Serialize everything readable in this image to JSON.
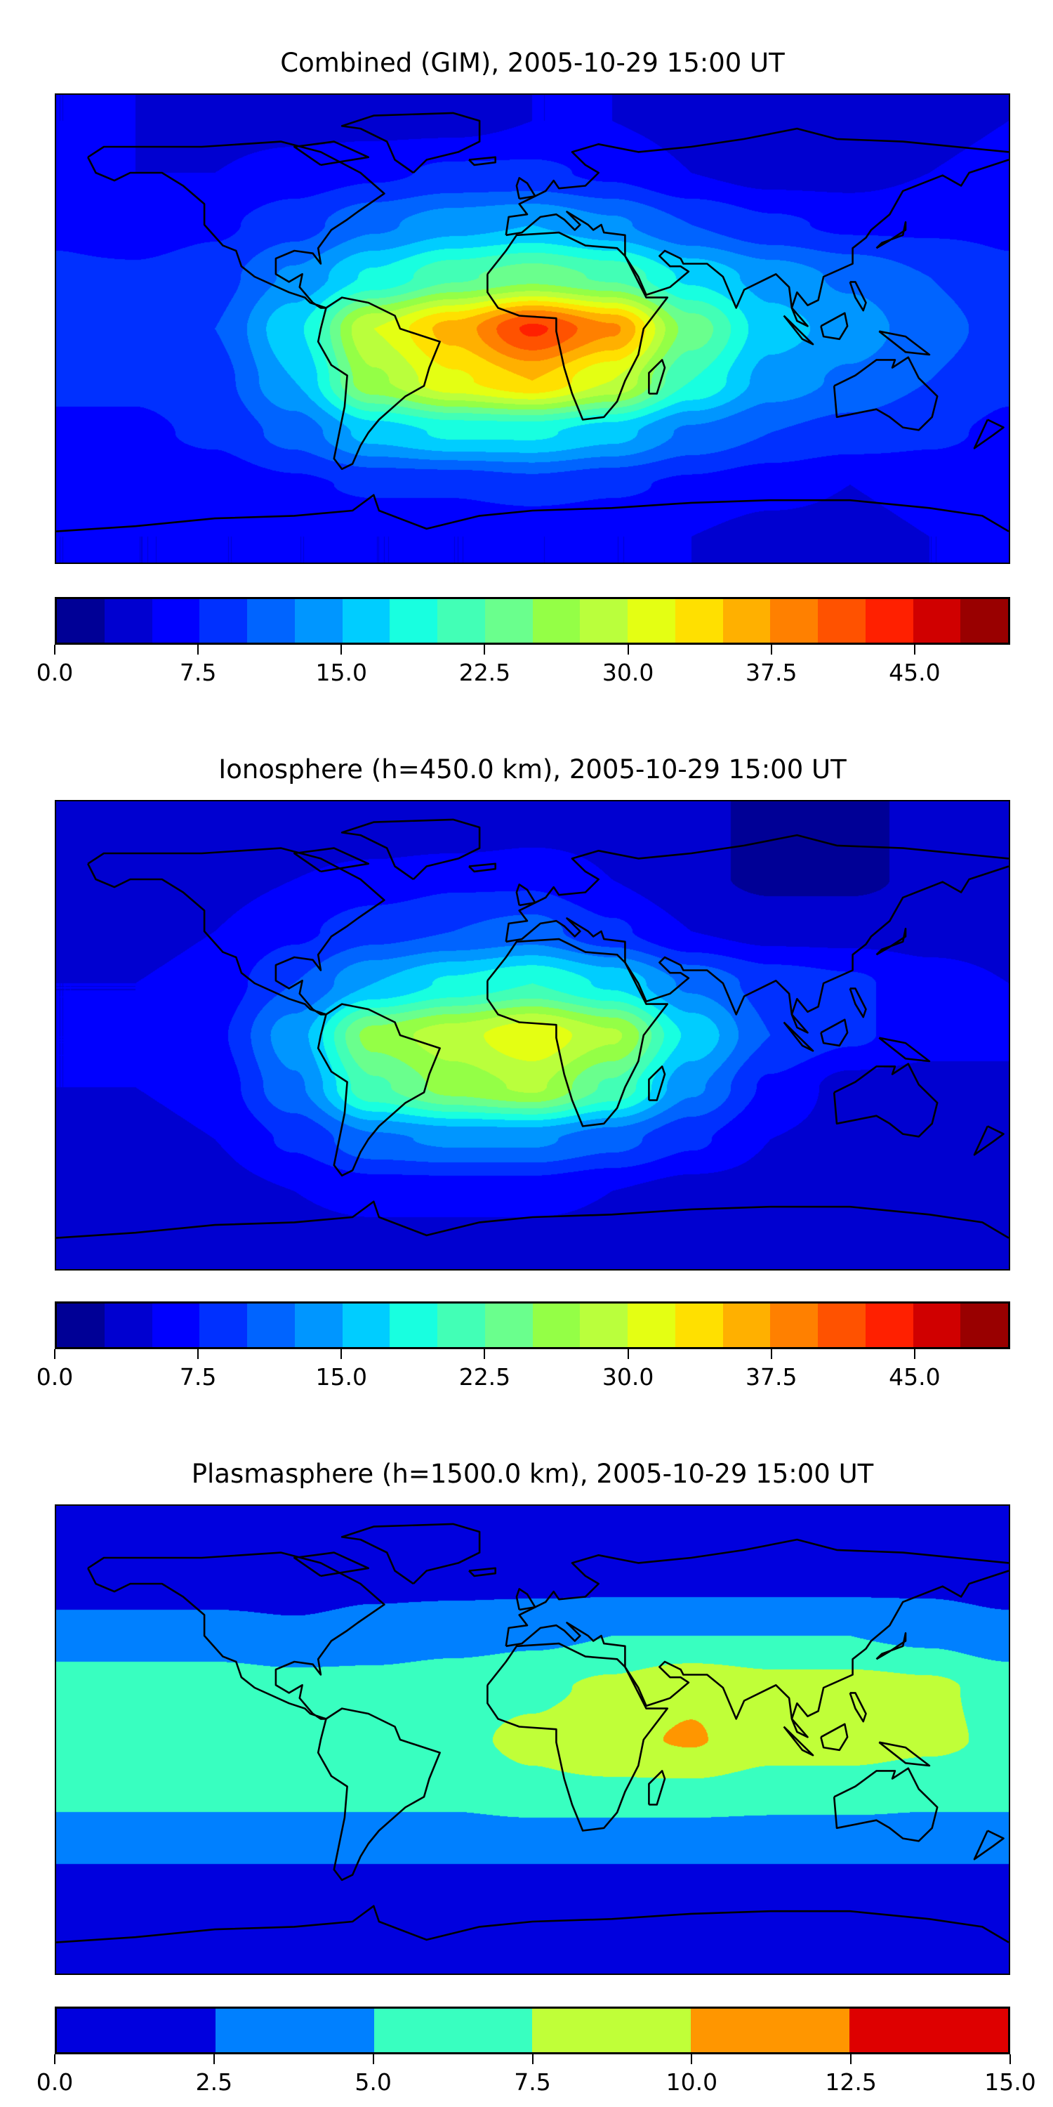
{
  "chart_data": [
    {
      "type": "heatmap",
      "title": "Combined (GIM), 2005-10-29 15:00 UT",
      "projection": "plate-carree",
      "lons": [
        -180,
        -150,
        -120,
        -90,
        -60,
        -30,
        0,
        30,
        60,
        90,
        120,
        150,
        180
      ],
      "lats": [
        80,
        60,
        40,
        20,
        0,
        -20,
        -40,
        -60,
        -80
      ],
      "values": [
        [
          5,
          5,
          4,
          4,
          4,
          4,
          5,
          5,
          4,
          3,
          3,
          4,
          5
        ],
        [
          6,
          5,
          5,
          6,
          7,
          8,
          8,
          7,
          5,
          4,
          4,
          5,
          6
        ],
        [
          7,
          6,
          7,
          9,
          12,
          14,
          15,
          13,
          10,
          8,
          7,
          7,
          7
        ],
        [
          8,
          8,
          9,
          13,
          18,
          22,
          24,
          22,
          17,
          14,
          12,
          10,
          8
        ],
        [
          9,
          9,
          10,
          17,
          30,
          36,
          43,
          38,
          24,
          16,
          14,
          11,
          9
        ],
        [
          8,
          8,
          9,
          15,
          27,
          32,
          35,
          30,
          20,
          14,
          12,
          10,
          8
        ],
        [
          7,
          7,
          8,
          11,
          16,
          18,
          18,
          16,
          12,
          10,
          9,
          8,
          7
        ],
        [
          6,
          6,
          6,
          7,
          8,
          8,
          9,
          8,
          7,
          6,
          5,
          6,
          6
        ],
        [
          5,
          5,
          5,
          5,
          5,
          5,
          5,
          5,
          5,
          4,
          4,
          5,
          5
        ]
      ],
      "colorbar": {
        "range": [
          0,
          50
        ],
        "step": 2.5,
        "ticks": [
          "0.0",
          "7.5",
          "15.0",
          "22.5",
          "30.0",
          "37.5",
          "45.0"
        ],
        "tick_values": [
          0,
          7.5,
          15,
          22.5,
          30,
          37.5,
          45
        ],
        "colors": [
          "#000096",
          "#0000d0",
          "#0000ff",
          "#0030ff",
          "#0064ff",
          "#0096ff",
          "#00cdff",
          "#18ffe0",
          "#42ffb6",
          "#6aff8d",
          "#94ff46",
          "#baff3c",
          "#e4ff13",
          "#ffe000",
          "#ffb000",
          "#ff8000",
          "#ff5200",
          "#ff2000",
          "#d00000",
          "#990000"
        ]
      }
    },
    {
      "type": "heatmap",
      "title": "Ionosphere  (h=450.0 km), 2005-10-29 15:00 UT",
      "projection": "plate-carree",
      "lons": [
        -180,
        -150,
        -120,
        -90,
        -60,
        -30,
        0,
        30,
        60,
        90,
        120,
        150,
        180
      ],
      "lats": [
        80,
        60,
        40,
        20,
        0,
        -20,
        -40,
        -60,
        -80
      ],
      "values": [
        [
          4,
          4,
          3,
          3,
          3,
          3,
          4,
          4,
          3,
          2,
          2,
          3,
          4
        ],
        [
          4,
          4,
          4,
          5,
          6,
          7,
          7,
          5,
          3,
          2,
          2,
          3,
          4
        ],
        [
          4,
          4,
          5,
          7,
          9,
          10,
          11,
          8,
          5,
          4,
          4,
          4,
          4
        ],
        [
          5,
          5,
          6,
          10,
          15,
          18,
          20,
          17,
          12,
          9,
          8,
          6,
          5
        ],
        [
          5,
          5,
          7,
          14,
          26,
          29,
          32,
          28,
          17,
          10,
          8,
          6,
          5
        ],
        [
          5,
          5,
          6,
          12,
          22,
          26,
          28,
          22,
          13,
          7,
          4,
          4,
          5
        ],
        [
          4,
          4,
          5,
          8,
          12,
          13,
          13,
          11,
          8,
          5,
          4,
          4,
          4
        ],
        [
          4,
          4,
          4,
          5,
          6,
          6,
          6,
          5,
          4,
          4,
          3,
          3,
          4
        ],
        [
          4,
          4,
          4,
          4,
          4,
          4,
          4,
          4,
          4,
          3,
          3,
          3,
          4
        ]
      ],
      "colorbar": {
        "range": [
          0,
          50
        ],
        "step": 2.5,
        "ticks": [
          "0.0",
          "7.5",
          "15.0",
          "22.5",
          "30.0",
          "37.5",
          "45.0"
        ],
        "tick_values": [
          0,
          7.5,
          15,
          22.5,
          30,
          37.5,
          45
        ],
        "colors": [
          "#000096",
          "#0000d0",
          "#0000ff",
          "#0030ff",
          "#0064ff",
          "#0096ff",
          "#00cdff",
          "#18ffe0",
          "#42ffb6",
          "#6aff8d",
          "#94ff46",
          "#baff3c",
          "#e4ff13",
          "#ffe000",
          "#ffb000",
          "#ff8000",
          "#ff5200",
          "#ff2000",
          "#d00000",
          "#990000"
        ]
      }
    },
    {
      "type": "heatmap",
      "title": "Plasmasphere (h=1500.0 km), 2005-10-29 15:00 UT",
      "projection": "plate-carree",
      "lons": [
        -180,
        -150,
        -120,
        -90,
        -60,
        -30,
        0,
        30,
        60,
        90,
        120,
        150,
        180
      ],
      "lats": [
        80,
        60,
        40,
        20,
        0,
        -20,
        -40,
        -60,
        -80
      ],
      "values": [
        [
          1,
          1,
          1,
          1,
          1,
          1,
          1,
          1,
          1,
          1,
          1,
          1,
          1
        ],
        [
          1.5,
          1.5,
          1.5,
          1.5,
          2,
          2,
          2,
          2,
          2,
          2,
          2,
          2,
          1.5
        ],
        [
          3.5,
          3.5,
          3.5,
          3,
          3.5,
          4,
          4.5,
          5,
          5,
          5,
          5,
          4.5,
          3.5
        ],
        [
          6.5,
          6.5,
          6.5,
          6,
          6,
          6.5,
          7,
          8,
          9.6,
          8.5,
          8.5,
          8,
          6.5
        ],
        [
          7,
          7,
          7,
          7,
          7,
          7,
          8,
          9.5,
          10.2,
          8.5,
          8.5,
          8,
          7
        ],
        [
          6,
          6,
          6,
          6,
          6,
          6,
          7,
          7,
          7,
          6.5,
          6.5,
          6,
          6
        ],
        [
          3,
          3,
          3,
          3,
          3,
          3,
          3,
          3,
          3,
          3,
          3,
          3,
          3
        ],
        [
          1.5,
          1.5,
          1.5,
          1.5,
          1.5,
          1.5,
          1.5,
          1.5,
          1.5,
          1.5,
          1.5,
          1.5,
          1.5
        ],
        [
          1,
          1,
          1,
          1,
          1,
          1,
          1,
          1,
          1,
          1,
          1,
          1,
          1
        ]
      ],
      "colorbar": {
        "range": [
          0,
          15
        ],
        "step": 2.5,
        "ticks": [
          "0.0",
          "2.5",
          "5.0",
          "7.5",
          "10.0",
          "12.5",
          "15.0"
        ],
        "tick_values": [
          0,
          2.5,
          5,
          7.5,
          10,
          12.5,
          15
        ],
        "colors": [
          "#0000de",
          "#0080ff",
          "#38ffc0",
          "#c0ff38",
          "#ff9600",
          "#de0000"
        ]
      }
    }
  ]
}
